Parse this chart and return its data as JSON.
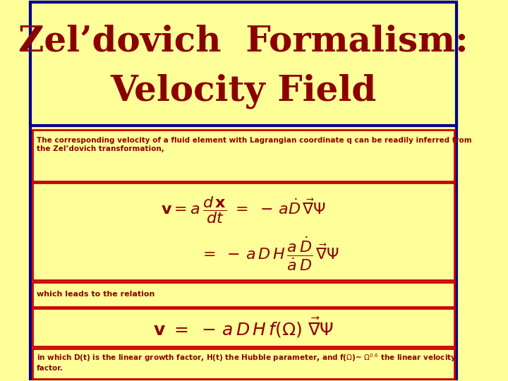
{
  "background_color": "#ffff99",
  "title_bg_color": "#ffff99",
  "title_border_color": "#00008B",
  "title_line1": "Zel’dovich  Formalism:",
  "title_line2": "Velocity Field",
  "title_color": "#8B0000",
  "title_fontsize": 36,
  "body_bg_color": "#ffff99",
  "body_border_color": "#CC0000",
  "text_color": "#8B0000",
  "text1": "The corresponding velocity of a fluid element with Lagrangian coordinate q can be readily inferred from\nthe Zel’dovich transformation,",
  "text2": "which leads to the relation",
  "text3": "in which D(t) is the linear growth factor, H(t) the Hubble parameter, and f(Ω)~ Ω0.6 the linear velocity\nfactor.",
  "outer_border_color": "#00008B"
}
